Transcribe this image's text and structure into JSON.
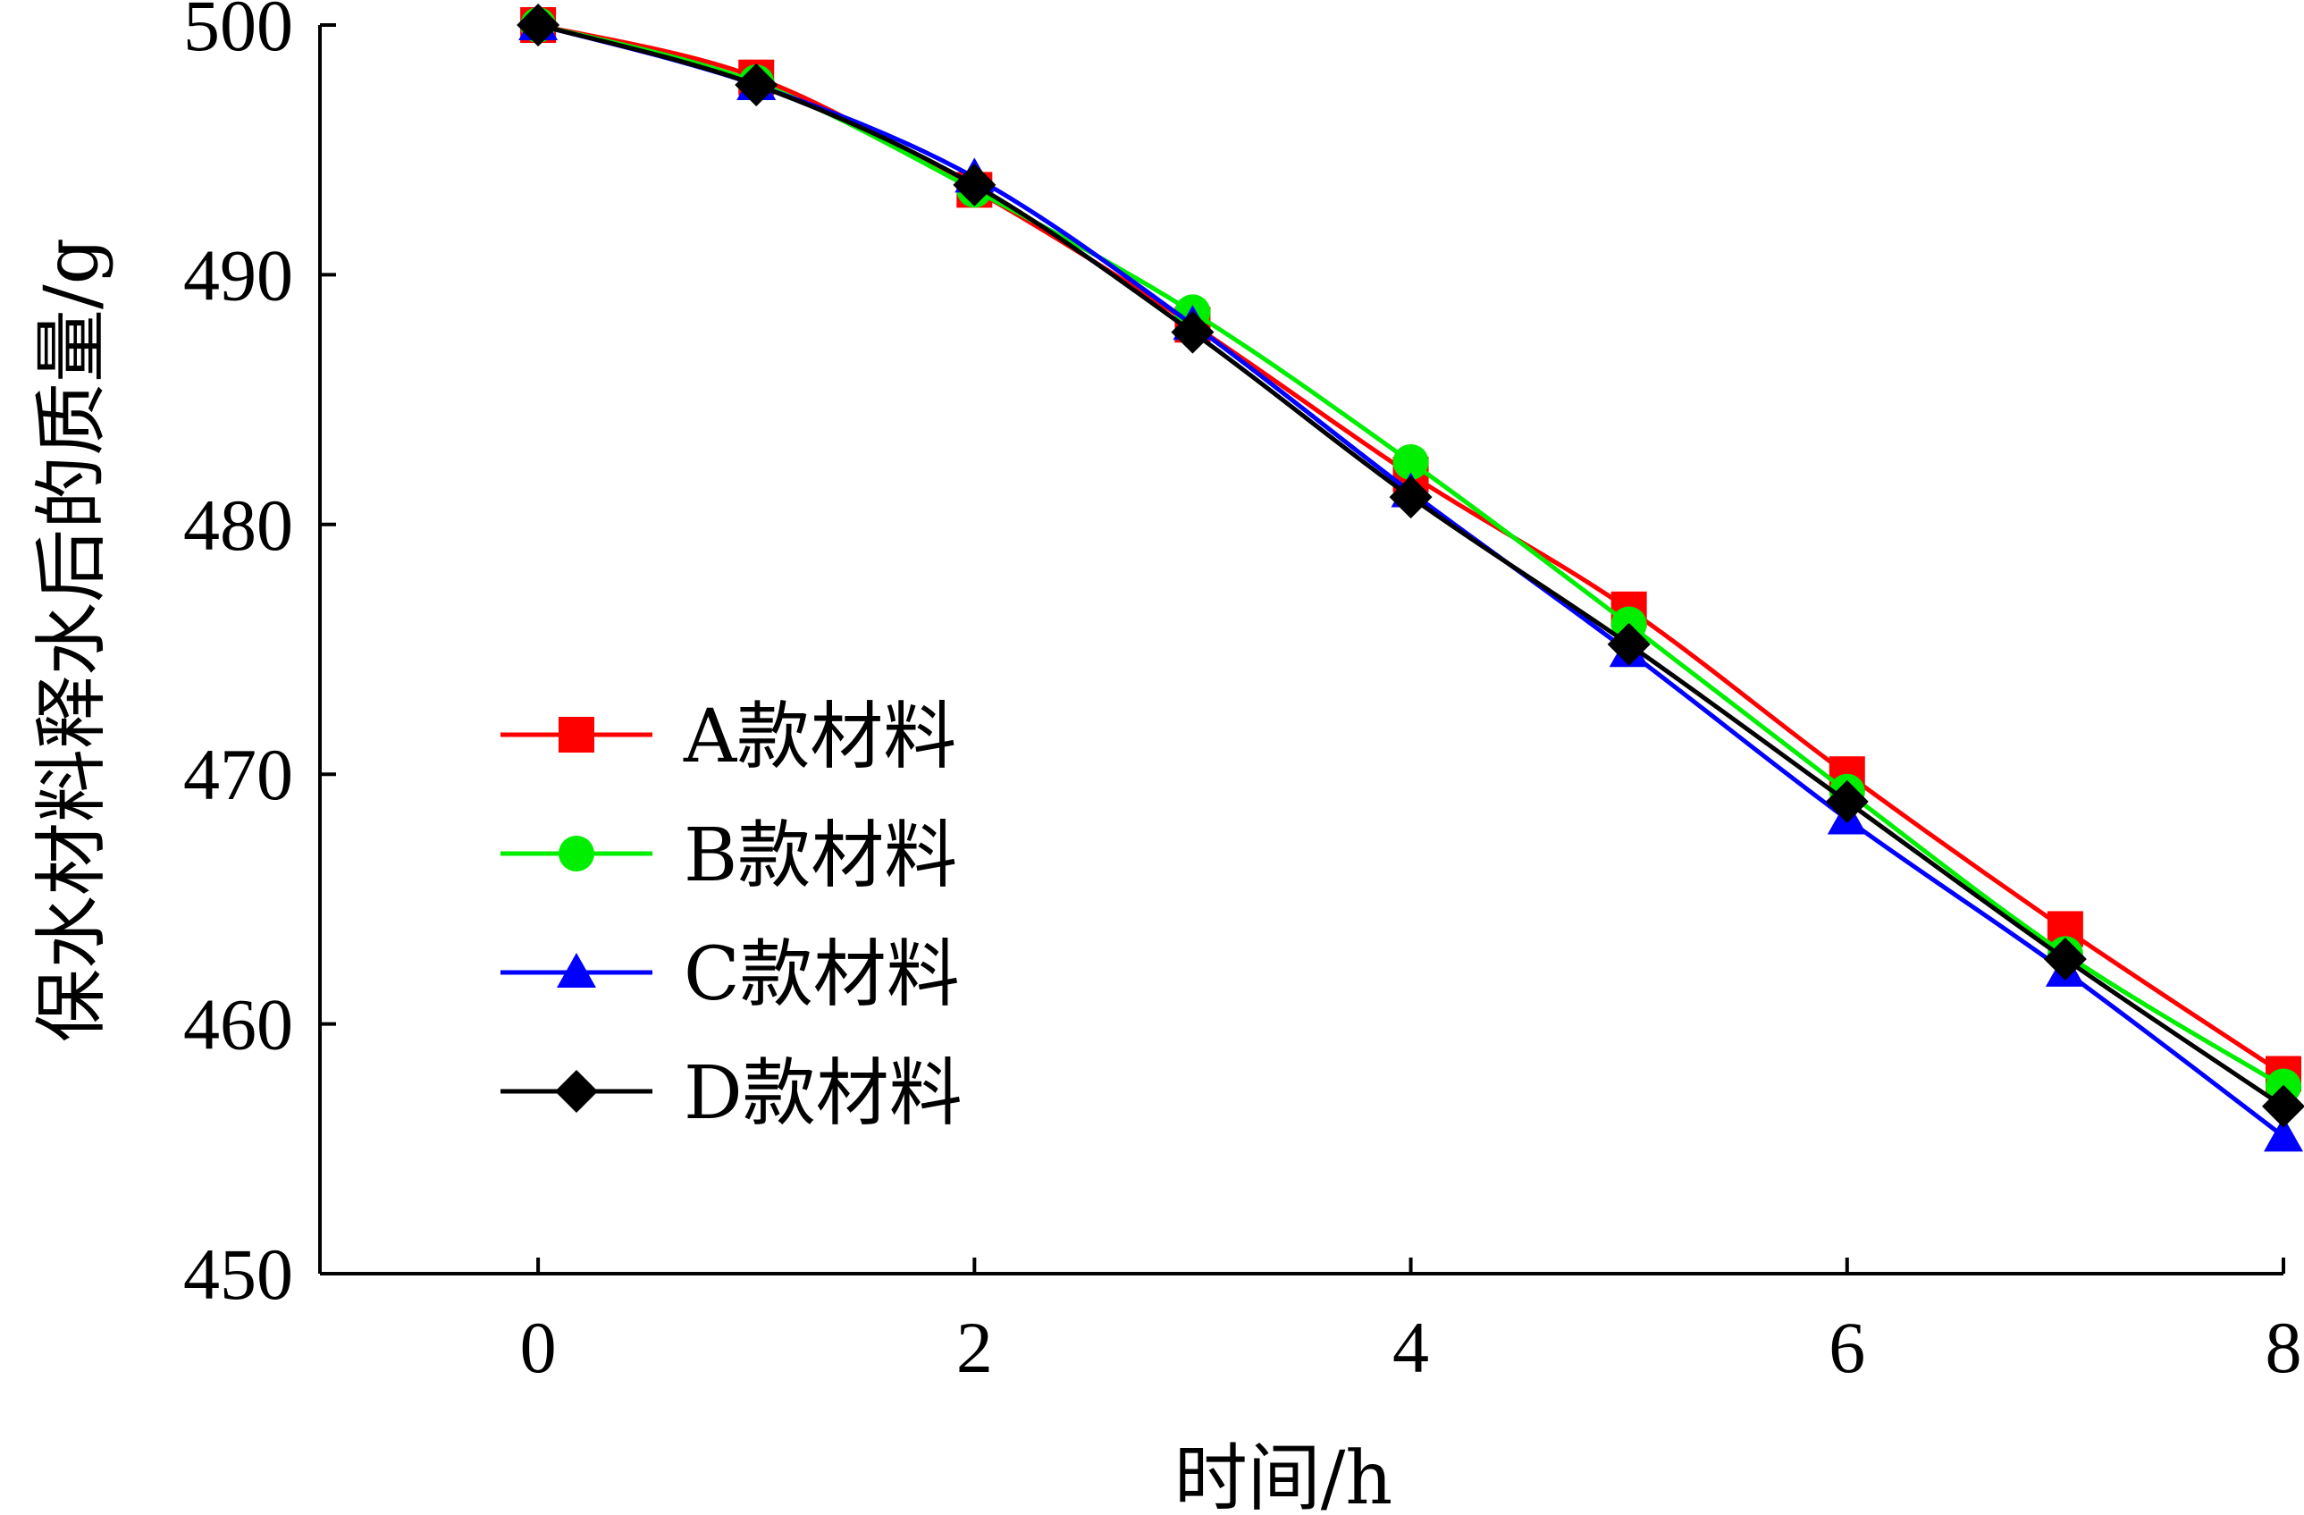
{
  "chart_data": {
    "type": "line",
    "title": "",
    "xlabel": "时间/h",
    "ylabel": "保水材料释水后的质量/g",
    "x": [
      0,
      1,
      2,
      3,
      4,
      5,
      6,
      7,
      8
    ],
    "xlim": [
      -1,
      8
    ],
    "ylim": [
      450,
      500
    ],
    "xticks": [
      0,
      2,
      4,
      6,
      8
    ],
    "yticks": [
      450,
      460,
      470,
      480,
      490,
      500
    ],
    "grid": false,
    "legend_position": "left",
    "series": [
      {
        "name": "A款材料",
        "color": "#ff0000",
        "marker": "square",
        "values": [
          500.0,
          497.9,
          493.4,
          488.0,
          482.0,
          476.6,
          470.0,
          463.8,
          458.0
        ]
      },
      {
        "name": "B款材料",
        "color": "#00ee00",
        "marker": "circle",
        "values": [
          500.0,
          497.7,
          493.4,
          488.5,
          482.5,
          476.0,
          469.3,
          462.8,
          457.5
        ]
      },
      {
        "name": "C款材料",
        "color": "#0000ff",
        "marker": "triangle",
        "values": [
          500.0,
          497.6,
          493.9,
          488.0,
          481.3,
          474.9,
          468.2,
          462.1,
          455.5
        ]
      },
      {
        "name": "D款材料",
        "color": "#000000",
        "marker": "diamond",
        "values": [
          500.0,
          497.6,
          493.6,
          487.7,
          481.1,
          475.2,
          468.9,
          462.6,
          456.7
        ]
      }
    ]
  }
}
